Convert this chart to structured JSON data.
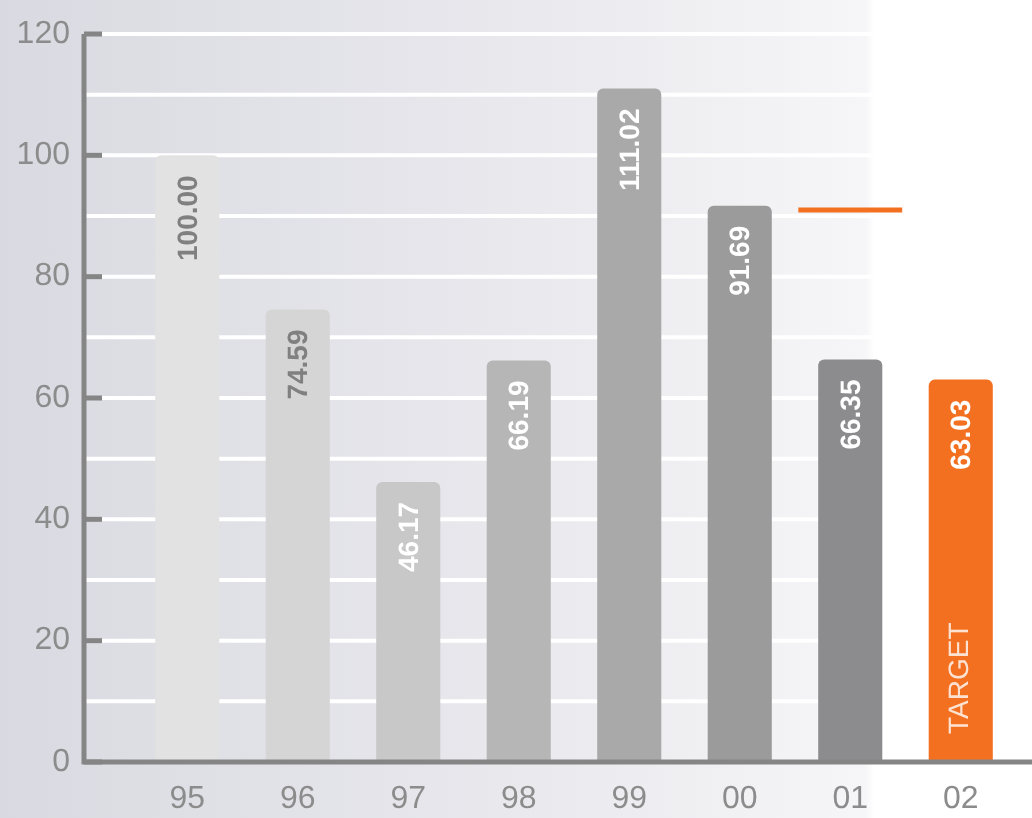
{
  "chart_data": {
    "type": "bar",
    "categories": [
      "95",
      "96",
      "97",
      "98",
      "99",
      "00",
      "01",
      "02"
    ],
    "series": [
      {
        "values": [
          100.0,
          74.59,
          46.17,
          66.19,
          111.02,
          91.69,
          66.35,
          63.03
        ],
        "colors": [
          "#e2e2e2",
          "#d6d5d6",
          "#c9c8c9",
          "#b6b6b6",
          "#a9a9aa",
          "#9b9b9c",
          "#8c8c8e",
          "#f37021"
        ],
        "value_labels": [
          "100.00",
          "74.59",
          "46.17",
          "66.19",
          "111.02",
          "91.69",
          "66.35",
          "63.03"
        ]
      }
    ],
    "ref_lines": [
      {
        "axis": "y",
        "value": 91,
        "color": "#f37021"
      }
    ],
    "ylim": [
      0,
      120
    ],
    "yticks": [
      0,
      {
        "value": 10,
        "label": null
      },
      20,
      {
        "value": 30,
        "label": null
      },
      40,
      {
        "value": 50,
        "label": null
      },
      60,
      {
        "value": 70,
        "label": null
      },
      80,
      {
        "value": 90,
        "label": null
      },
      100,
      {
        "value": 110,
        "label": null
      },
      120
    ],
    "grid": "y",
    "annotations": [
      {
        "text": "TARGET",
        "x": "02",
        "y": 0
      }
    ]
  }
}
